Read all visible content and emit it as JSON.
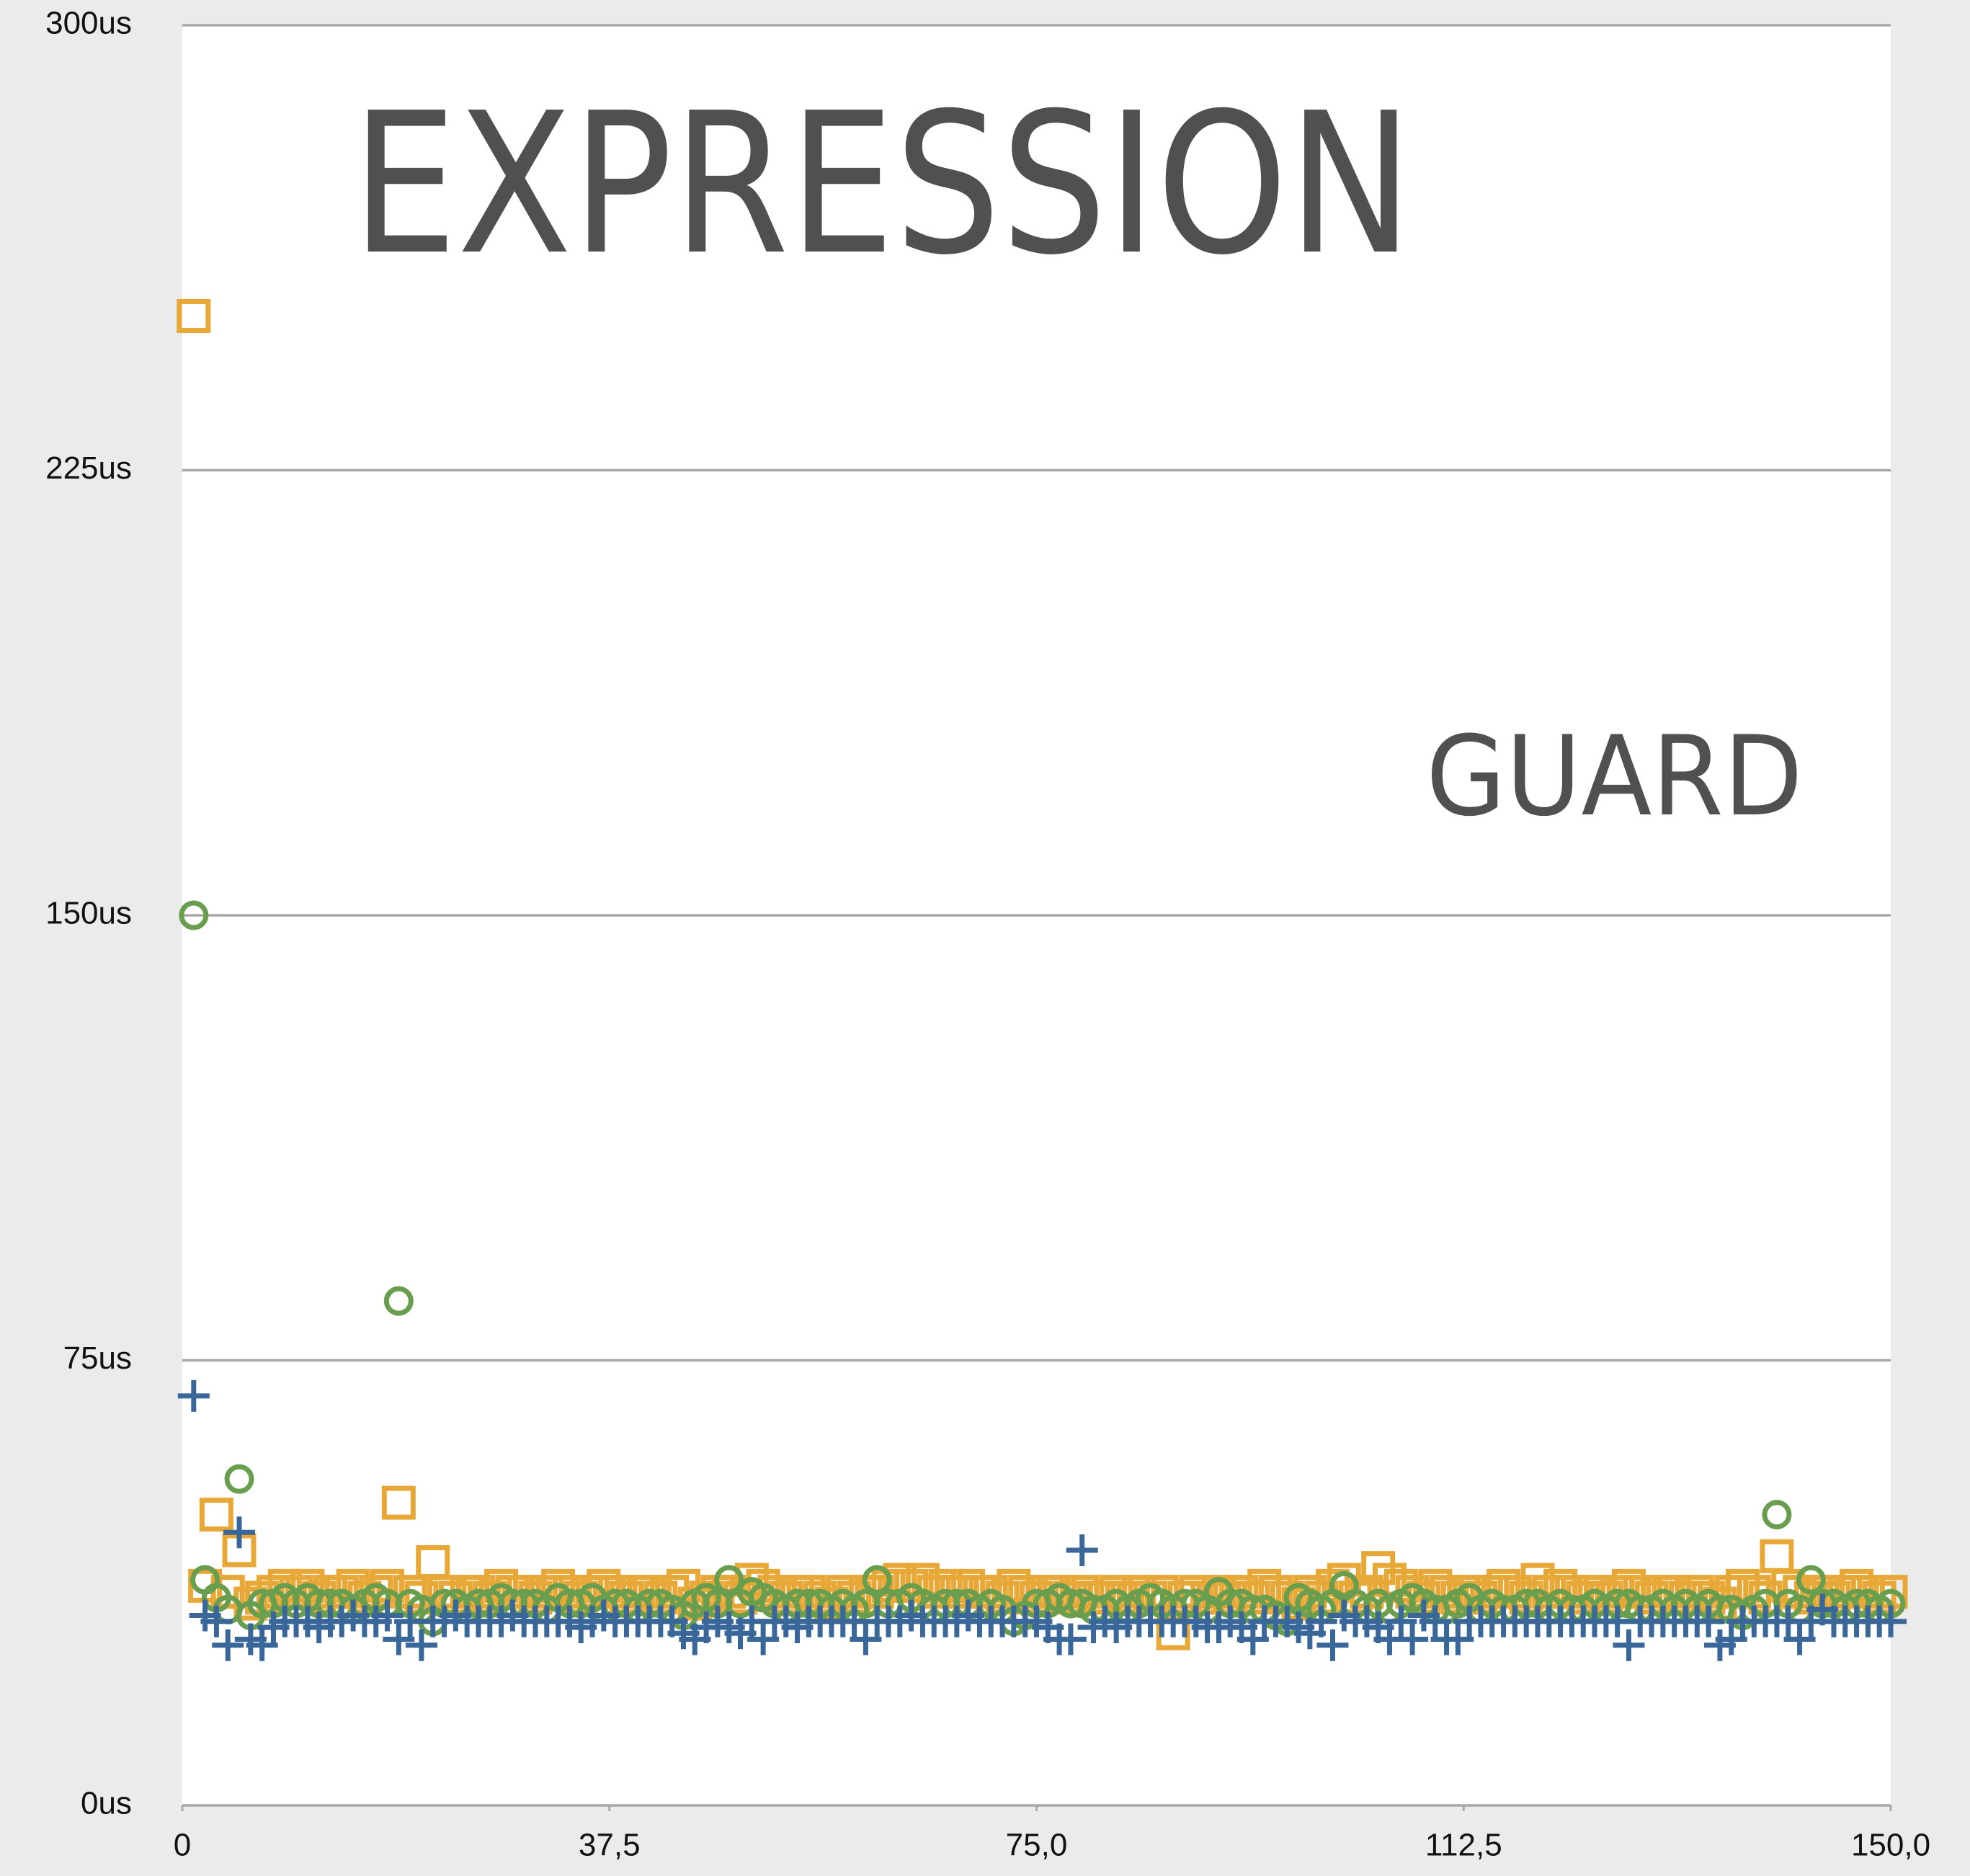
{
  "chart_data": {
    "type": "scatter",
    "annotations": [
      "EXPRESSION",
      "GUARD"
    ],
    "x": [
      1,
      2,
      3,
      4,
      5,
      6,
      7,
      8,
      9,
      10,
      11,
      12,
      13,
      14,
      15,
      16,
      17,
      18,
      19,
      20,
      21,
      22,
      23,
      24,
      25,
      26,
      27,
      28,
      29,
      30,
      31,
      32,
      33,
      34,
      35,
      36,
      37,
      38,
      39,
      40,
      41,
      42,
      43,
      44,
      45,
      46,
      47,
      48,
      49,
      50,
      51,
      52,
      53,
      54,
      55,
      56,
      57,
      58,
      59,
      60,
      61,
      62,
      63,
      64,
      65,
      66,
      67,
      68,
      69,
      70,
      71,
      72,
      73,
      74,
      75,
      76,
      77,
      78,
      79,
      80,
      81,
      82,
      83,
      84,
      85,
      86,
      87,
      88,
      89,
      90,
      91,
      92,
      93,
      94,
      95,
      96,
      97,
      98,
      99,
      100,
      101,
      102,
      103,
      104,
      105,
      106,
      107,
      108,
      109,
      110,
      111,
      112,
      113,
      114,
      115,
      116,
      117,
      118,
      119,
      120,
      121,
      122,
      123,
      124,
      125,
      126,
      127,
      128,
      129,
      130,
      131,
      132,
      133,
      134,
      135,
      136,
      137,
      138,
      139,
      140,
      141,
      142,
      143,
      144,
      145,
      146,
      147,
      148,
      149,
      150
    ],
    "series": [
      {
        "color": "#e8a838",
        "marker": "square",
        "values": [
          251,
          37,
          49,
          36,
          43,
          34,
          35,
          36,
          37,
          36,
          37,
          35,
          36,
          36,
          37,
          35,
          36,
          37,
          51,
          36,
          35,
          41,
          36,
          35,
          36,
          36,
          35,
          37,
          36,
          36,
          35,
          36,
          37,
          36,
          35,
          36,
          37,
          36,
          35,
          36,
          36,
          35,
          36,
          37,
          34,
          35,
          36,
          36,
          35,
          38,
          37,
          36,
          35,
          36,
          36,
          35,
          34,
          36,
          35,
          36,
          36,
          37,
          38,
          37,
          38,
          36,
          37,
          36,
          37,
          36,
          36,
          35,
          37,
          36,
          35,
          36,
          36,
          35,
          36,
          35,
          35,
          36,
          35,
          36,
          35,
          36,
          29,
          35,
          36,
          35,
          36,
          35,
          36,
          35,
          37,
          36,
          35,
          34,
          36,
          35,
          37,
          38,
          35,
          36,
          40,
          38,
          37,
          36,
          35,
          37,
          36,
          35,
          36,
          35,
          36,
          37,
          36,
          35,
          38,
          36,
          37,
          36,
          35,
          36,
          35,
          36,
          37,
          36,
          35,
          36,
          36,
          35,
          36,
          35,
          34,
          36,
          37,
          36,
          35,
          42,
          37,
          36,
          35,
          36,
          35,
          36,
          37,
          36,
          35,
          36
        ]
      },
      {
        "color": "#6a9e4f",
        "marker": "circle",
        "values": [
          150,
          38,
          35,
          33,
          55,
          32,
          34,
          34,
          35,
          34,
          35,
          34,
          34,
          34,
          33,
          34,
          35,
          34,
          85,
          34,
          33,
          31,
          34,
          34,
          33,
          34,
          34,
          35,
          34,
          34,
          34,
          33,
          35,
          34,
          34,
          35,
          33,
          34,
          34,
          33,
          34,
          34,
          33,
          32,
          34,
          35,
          34,
          38,
          34,
          36,
          35,
          34,
          33,
          34,
          34,
          34,
          33,
          34,
          33,
          34,
          38,
          34,
          34,
          35,
          34,
          33,
          34,
          34,
          34,
          33,
          34,
          33,
          31,
          32,
          34,
          34,
          35,
          34,
          34,
          33,
          33,
          34,
          33,
          34,
          35,
          34,
          33,
          34,
          34,
          33,
          36,
          34,
          34,
          33,
          33,
          32,
          31,
          35,
          34,
          33,
          34,
          37,
          34,
          33,
          34,
          33,
          34,
          35,
          34,
          33,
          33,
          34,
          35,
          33,
          34,
          33,
          33,
          34,
          34,
          33,
          34,
          33,
          33,
          34,
          33,
          34,
          34,
          33,
          33,
          34,
          33,
          34,
          33,
          34,
          33,
          33,
          32,
          33,
          34,
          49,
          34,
          33,
          38,
          34,
          34,
          33,
          34,
          34,
          33,
          34
        ]
      },
      {
        "color": "#3a6799",
        "marker": "plus",
        "values": [
          69,
          32,
          31,
          27,
          46,
          28,
          27,
          30,
          31,
          31,
          31,
          30,
          31,
          31,
          32,
          31,
          31,
          32,
          28,
          31,
          27,
          31,
          31,
          32,
          31,
          31,
          31,
          31,
          32,
          31,
          31,
          31,
          31,
          31,
          30,
          31,
          32,
          31,
          31,
          31,
          31,
          31,
          31,
          29,
          28,
          30,
          31,
          30,
          29,
          31,
          28,
          31,
          31,
          30,
          31,
          31,
          31,
          31,
          31,
          28,
          31,
          31,
          31,
          32,
          31,
          31,
          31,
          31,
          32,
          31,
          31,
          31,
          31,
          31,
          31,
          30,
          28,
          28,
          43,
          30,
          31,
          30,
          31,
          31,
          31,
          31,
          31,
          31,
          31,
          30,
          30,
          31,
          30,
          28,
          31,
          31,
          31,
          30,
          29,
          31,
          27,
          32,
          31,
          31,
          30,
          28,
          31,
          28,
          32,
          31,
          28,
          28,
          31,
          31,
          31,
          31,
          31,
          31,
          31,
          31,
          31,
          31,
          31,
          31,
          31,
          31,
          27,
          31,
          31,
          31,
          31,
          31,
          31,
          31,
          27,
          28,
          31,
          31,
          31,
          31,
          31,
          28,
          31,
          33,
          31,
          31,
          31,
          31,
          31,
          31
        ]
      }
    ],
    "xlim": [
      0,
      150
    ],
    "ylim": [
      0,
      300
    ],
    "xticks": [
      0,
      {
        "value": 37.5,
        "label": "37,5"
      },
      {
        "value": 75,
        "label": "75,0"
      },
      {
        "value": 112.5,
        "label": "112,5"
      },
      {
        "value": 150,
        "label": "150,0"
      }
    ],
    "yticks": [
      {
        "value": 0,
        "label": "0us"
      },
      {
        "value": 75,
        "label": "75us"
      },
      {
        "value": 150,
        "label": "150us"
      },
      {
        "value": 225,
        "label": "225us"
      },
      {
        "value": 300,
        "label": "300us"
      }
    ],
    "grid": true
  }
}
